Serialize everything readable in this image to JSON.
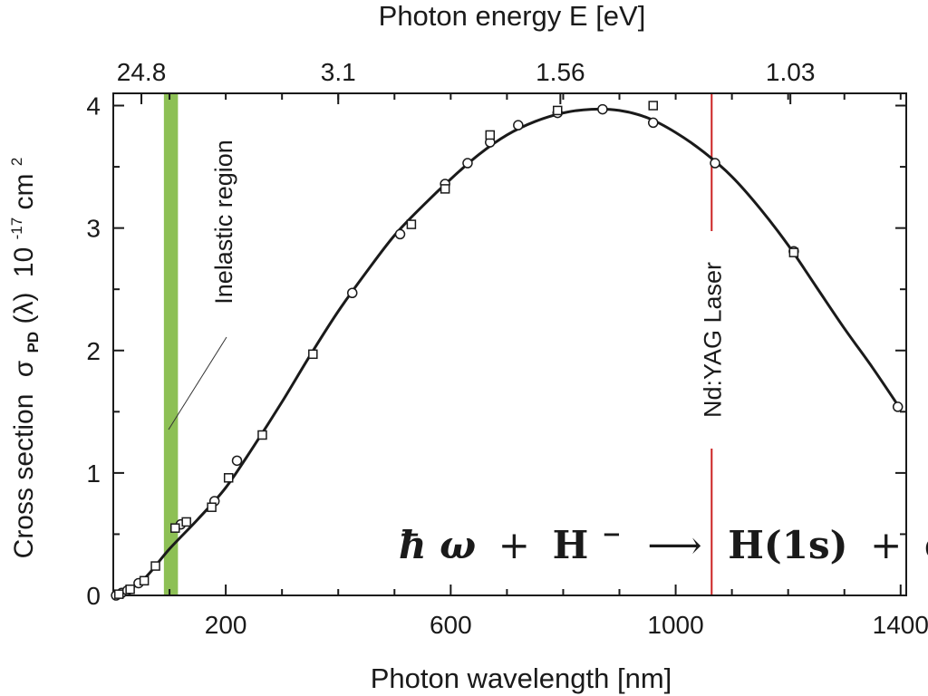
{
  "chart_data": {
    "type": "scatter",
    "xlabel": "Photon wavelength [nm]",
    "ylabel_main": "Cross section",
    "ylabel_sigma": "σ",
    "ylabel_sub": "PD",
    "ylabel_arg": "(λ)",
    "ylabel_unit_base": "10",
    "ylabel_unit_exp": "-17",
    "ylabel_unit_cm": "cm",
    "ylabel_unit_cm_exp": "2",
    "top_xlabel": "Photon energy E [eV]",
    "xlim": [
      0,
      1410
    ],
    "ylim": [
      0,
      4.1
    ],
    "x_ticks": [
      200,
      600,
      1000,
      1400
    ],
    "x_minor_ticks": [
      100,
      200,
      300,
      400,
      500,
      600,
      700,
      800,
      900,
      1000,
      1100,
      1200,
      1300,
      1400
    ],
    "y_ticks": [
      0,
      1,
      2,
      3,
      4
    ],
    "top_ticks": [
      {
        "label": "24.8",
        "wavelength": 50
      },
      {
        "label": "3.1",
        "wavelength": 400
      },
      {
        "label": "1.56",
        "wavelength": 795
      },
      {
        "label": "1.03",
        "wavelength": 1204
      }
    ],
    "top_minor_ticks": [
      50,
      100,
      200,
      300,
      400,
      500,
      600,
      700,
      800,
      900,
      1000,
      1100,
      1200,
      1300,
      1400
    ],
    "curve": [
      [
        5,
        0.0
      ],
      [
        30,
        0.05
      ],
      [
        60,
        0.16
      ],
      [
        100,
        0.38
      ],
      [
        150,
        0.62
      ],
      [
        200,
        0.88
      ],
      [
        250,
        1.22
      ],
      [
        300,
        1.58
      ],
      [
        350,
        1.96
      ],
      [
        400,
        2.32
      ],
      [
        450,
        2.64
      ],
      [
        500,
        2.94
      ],
      [
        550,
        3.18
      ],
      [
        600,
        3.4
      ],
      [
        650,
        3.6
      ],
      [
        700,
        3.76
      ],
      [
        750,
        3.87
      ],
      [
        800,
        3.94
      ],
      [
        850,
        3.97
      ],
      [
        900,
        3.96
      ],
      [
        950,
        3.9
      ],
      [
        1000,
        3.78
      ],
      [
        1050,
        3.62
      ],
      [
        1100,
        3.42
      ],
      [
        1150,
        3.16
      ],
      [
        1200,
        2.86
      ],
      [
        1250,
        2.52
      ],
      [
        1300,
        2.18
      ],
      [
        1350,
        1.86
      ],
      [
        1400,
        1.52
      ]
    ],
    "series": [
      {
        "marker": "circle",
        "points": [
          [
            5,
            0.0
          ],
          [
            15,
            0.02
          ],
          [
            25,
            0.04
          ],
          [
            45,
            0.1
          ],
          [
            120,
            0.58
          ],
          [
            180,
            0.77
          ],
          [
            220,
            1.1
          ],
          [
            425,
            2.47
          ],
          [
            510,
            2.95
          ],
          [
            590,
            3.36
          ],
          [
            630,
            3.53
          ],
          [
            670,
            3.7
          ],
          [
            720,
            3.84
          ],
          [
            790,
            3.94
          ],
          [
            870,
            3.97
          ],
          [
            960,
            3.86
          ],
          [
            1070,
            3.53
          ],
          [
            1210,
            2.81
          ],
          [
            1395,
            1.54
          ]
        ]
      },
      {
        "marker": "square",
        "points": [
          [
            10,
            0.01
          ],
          [
            30,
            0.05
          ],
          [
            55,
            0.12
          ],
          [
            75,
            0.24
          ],
          [
            110,
            0.55
          ],
          [
            130,
            0.6
          ],
          [
            175,
            0.72
          ],
          [
            205,
            0.96
          ],
          [
            265,
            1.31
          ],
          [
            355,
            1.97
          ],
          [
            530,
            3.03
          ],
          [
            590,
            3.32
          ],
          [
            670,
            3.76
          ],
          [
            790,
            3.96
          ],
          [
            960,
            4.0
          ],
          [
            1210,
            2.8
          ]
        ]
      }
    ],
    "band": {
      "from": 90,
      "to": 115,
      "color": "#8dc055"
    },
    "band_label": "Inelastic region",
    "laser": {
      "wavelength": 1064,
      "color": "#cc2222"
    },
    "laser_label": "Nd:YAG Laser",
    "equation": {
      "hbar": "ħ",
      "omega": "ω",
      "plus1": "+",
      "H": "H",
      "minus_sup": "−",
      "arrow": "⟶",
      "H1s": "H(1s)",
      "plus2": "+",
      "e": "e",
      "e_sup": "−"
    }
  }
}
